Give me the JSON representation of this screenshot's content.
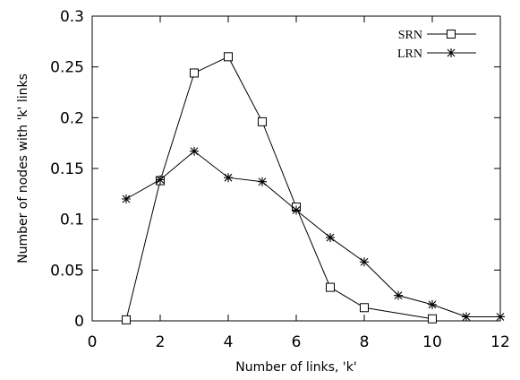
{
  "chart_data": {
    "type": "line",
    "xlabel": "Number of links, 'k'",
    "ylabel": "Number of nodes with 'k' links",
    "xlim": [
      0,
      12
    ],
    "ylim": [
      0,
      0.3
    ],
    "xticks": [
      0,
      2,
      4,
      6,
      8,
      10,
      12
    ],
    "yticks": [
      0,
      0.05,
      0.1,
      0.15,
      0.2,
      0.25,
      0.3
    ],
    "xtick_labels": [
      "0",
      "2",
      "4",
      "6",
      "8",
      "10",
      "12"
    ],
    "ytick_labels": [
      "0",
      "0.05",
      "0.1",
      "0.15",
      "0.2",
      "0.25",
      "0.3"
    ],
    "grid": false,
    "legend_position": "top-right",
    "series": [
      {
        "name": "SRN",
        "marker": "square",
        "x": [
          1,
          2,
          3,
          4,
          5,
          6,
          7,
          8,
          10
        ],
        "y": [
          0.001,
          0.138,
          0.244,
          0.26,
          0.196,
          0.112,
          0.033,
          0.013,
          0.002
        ]
      },
      {
        "name": "LRN",
        "marker": "star",
        "x": [
          1,
          2,
          3,
          4,
          5,
          6,
          7,
          8,
          9,
          10,
          11,
          12
        ],
        "y": [
          0.12,
          0.139,
          0.167,
          0.141,
          0.137,
          0.109,
          0.082,
          0.058,
          0.025,
          0.016,
          0.004,
          0.004
        ]
      }
    ]
  }
}
